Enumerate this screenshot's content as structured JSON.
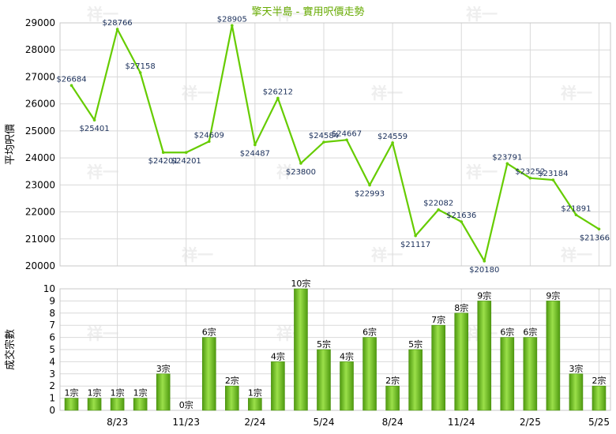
{
  "chart_data": [
    {
      "type": "line",
      "title": "擎天半島 - 實用呎價走勢",
      "ylabel": "平均呎價",
      "ylim": [
        20000,
        29000
      ],
      "yticks": [
        20000,
        21000,
        22000,
        23000,
        24000,
        25000,
        26000,
        27000,
        28000,
        29000
      ],
      "values": [
        26684,
        25401,
        28766,
        27158,
        24201,
        24201,
        24609,
        28905,
        24487,
        26212,
        23800,
        24584,
        24667,
        22993,
        24559,
        21117,
        22082,
        21636,
        20180,
        23791,
        23252,
        23184,
        21891,
        21366
      ],
      "labels": [
        "$26684",
        "$25401",
        "$28766",
        "$27158",
        "$24201",
        "$24201",
        "$24609",
        "$28905",
        "$24487",
        "$26212",
        "$23800",
        "$24584",
        "$24667",
        "$22993",
        "$24559",
        "$21117",
        "$22082",
        "$21636",
        "$20180",
        "$23791",
        "$23252",
        "$23184",
        "$21891",
        "$21366"
      ],
      "line_color": "#66cc00",
      "grid": true
    },
    {
      "type": "bar",
      "ylabel": "成交宗數",
      "ylim": [
        0,
        10
      ],
      "yticks": [
        0,
        1,
        2,
        3,
        4,
        5,
        6,
        7,
        8,
        9,
        10
      ],
      "values": [
        1,
        1,
        1,
        1,
        3,
        0,
        6,
        2,
        1,
        4,
        10,
        5,
        4,
        6,
        2,
        5,
        7,
        8,
        9,
        6,
        6,
        9,
        3,
        2
      ],
      "labels": [
        "1宗",
        "1宗",
        "1宗",
        "1宗",
        "3宗",
        "0宗",
        "6宗",
        "2宗",
        "1宗",
        "4宗",
        "10宗",
        "5宗",
        "4宗",
        "6宗",
        "2宗",
        "5宗",
        "7宗",
        "8宗",
        "9宗",
        "6宗",
        "6宗",
        "9宗",
        "3宗",
        "2宗"
      ],
      "bar_color": "#77cc22",
      "x_tick_labels": [
        {
          "index": 2,
          "label": "8/23"
        },
        {
          "index": 5,
          "label": "11/23"
        },
        {
          "index": 8,
          "label": "2/24"
        },
        {
          "index": 11,
          "label": "5/24"
        },
        {
          "index": 14,
          "label": "8/24"
        },
        {
          "index": 17,
          "label": "11/24"
        },
        {
          "index": 20,
          "label": "2/25"
        },
        {
          "index": 23,
          "label": "5/25"
        }
      ],
      "grid": true
    }
  ]
}
